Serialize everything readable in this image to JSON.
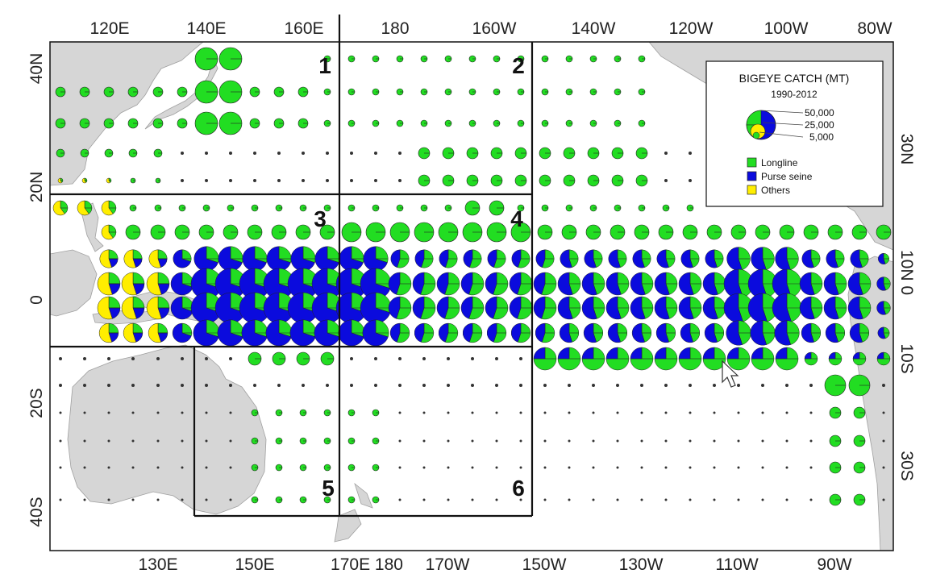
{
  "legend": {
    "title": "BIGEYE CATCH (MT)",
    "period": "1990-2012",
    "sizes": [
      "50,000",
      "25,000",
      "5,000"
    ],
    "gears": [
      {
        "label": "Longline",
        "color": "#22dd22"
      },
      {
        "label": "Purse seine",
        "color": "#0b0bdd"
      },
      {
        "label": "Others",
        "color": "#ffee00"
      }
    ]
  },
  "axes": {
    "top": [
      "120E",
      "140E",
      "160E",
      "180",
      "160W",
      "140W",
      "120W",
      "100W",
      "80W"
    ],
    "bottom": [
      "130E",
      "150E",
      "170E 180",
      "170W",
      "150W",
      "130W",
      "110W",
      "90W"
    ],
    "left": [
      "40N",
      "20N",
      "0",
      "20S",
      "40S"
    ],
    "right": [
      "30N",
      "10N  0",
      "10S",
      "30S"
    ]
  },
  "regions": [
    "1",
    "2",
    "3",
    "4",
    "5",
    "6"
  ],
  "colors": {
    "longline": "#22dd22",
    "purse_seine": "#0b0bdd",
    "others": "#ffee00",
    "land": "#d6d6d6"
  }
}
